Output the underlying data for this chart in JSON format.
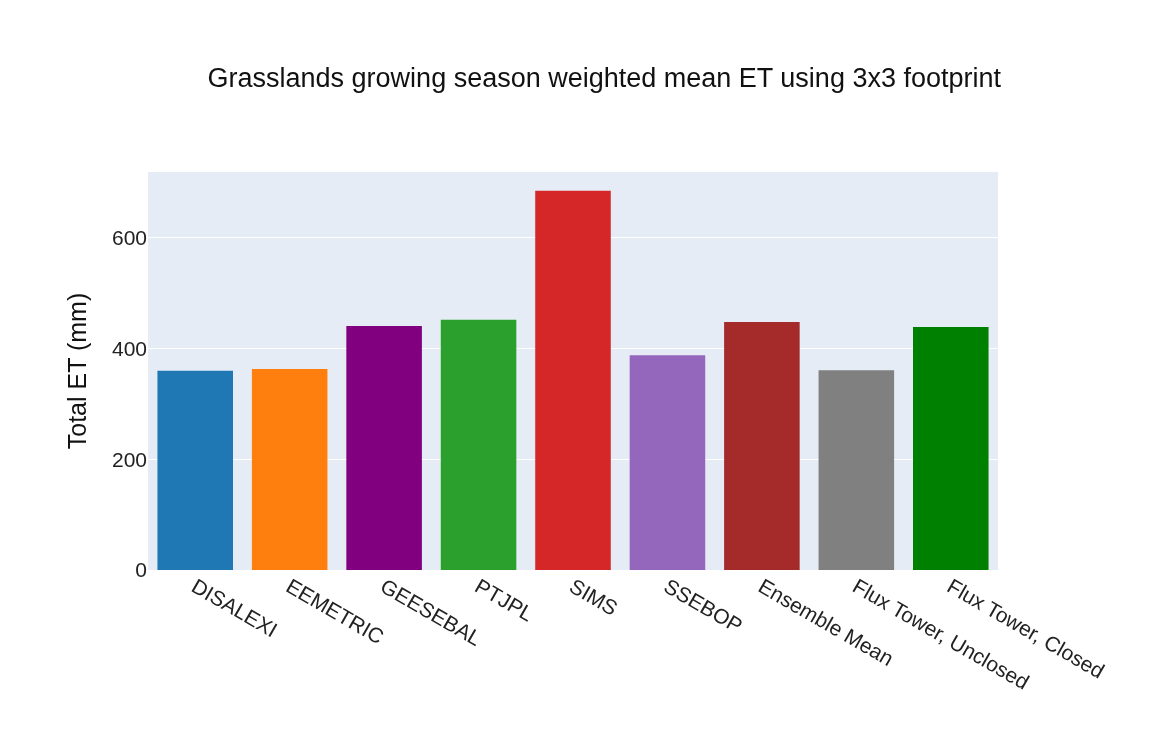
{
  "chart_data": {
    "type": "bar",
    "title": "Grasslands growing season weighted mean ET using 3x3 footprint",
    "ylabel": "Total ET (mm)",
    "categories": [
      "DISALEXI",
      "EEMETRIC",
      "GEESEBAL",
      "PTJPL",
      "SIMS",
      "SSEBOP",
      "Ensemble Mean",
      "Flux Tower, Unclosed",
      "Flux Tower, Closed"
    ],
    "values": [
      360,
      363,
      441,
      452,
      685,
      388,
      448,
      361,
      439
    ],
    "colors": [
      "#1f77b4",
      "#ff7f0e",
      "#800080",
      "#2ca02c",
      "#d62728",
      "#9467bd",
      "#a52a2a",
      "#808080",
      "#008000"
    ],
    "ylim": [
      0,
      719
    ],
    "yticks": [
      0,
      200,
      400,
      600
    ],
    "grid": "y"
  }
}
